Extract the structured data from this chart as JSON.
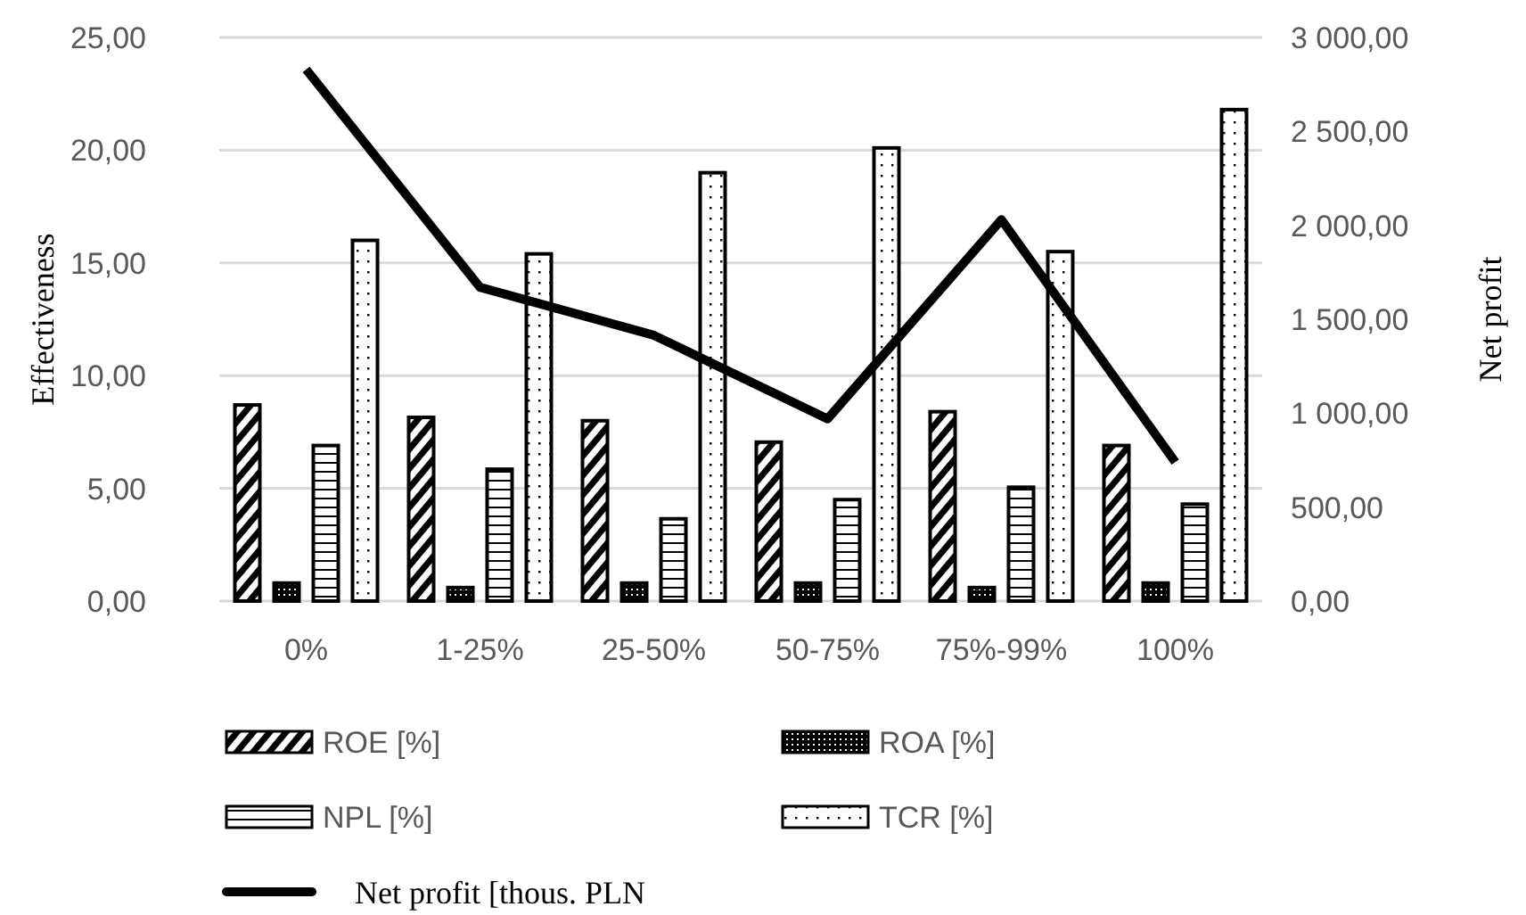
{
  "chart_data": {
    "type": "bar",
    "ylabel": "Effectiveness",
    "y2label": "Net profit",
    "categories": [
      "0%",
      "1-25%",
      "25-50%",
      "50-75%",
      "75%-99%",
      "100%"
    ],
    "series": [
      {
        "name": "ROE [%]",
        "color": "#000000",
        "values": [
          8.7,
          8.15,
          8.0,
          7.05,
          8.4,
          6.9
        ]
      },
      {
        "name": "ROA [%]",
        "color": "#000000",
        "values": [
          0.8,
          0.6,
          0.8,
          0.8,
          0.6,
          0.8
        ]
      },
      {
        "name": "NPL [%]",
        "color": "#000000",
        "values": [
          6.9,
          5.85,
          3.65,
          4.5,
          5.05,
          4.3
        ]
      },
      {
        "name": "TCR [%]",
        "color": "#000000",
        "values": [
          16.0,
          15.4,
          19.0,
          20.1,
          15.5,
          21.8
        ]
      },
      {
        "name": "Net profit [thous. PLN",
        "type": "line",
        "axis": "y2",
        "color": "#000000",
        "values": [
          2830,
          1670,
          1415,
          970,
          2030,
          740
        ]
      }
    ],
    "ylim": [
      0,
      25
    ],
    "yticks": [
      {
        "value": 0,
        "label": "0,00"
      },
      {
        "value": 5,
        "label": "5,00"
      },
      {
        "value": 10,
        "label": "10,00"
      },
      {
        "value": 15,
        "label": "15,00"
      },
      {
        "value": 20,
        "label": "20,00"
      },
      {
        "value": 25,
        "label": "25,00"
      }
    ],
    "y2lim": [
      0,
      3000
    ],
    "y2ticks": [
      {
        "value": 0,
        "label": "0,00"
      },
      {
        "value": 500,
        "label": "500,00"
      },
      {
        "value": 1000,
        "label": "1 000,00"
      },
      {
        "value": 1500,
        "label": "1 500,00"
      },
      {
        "value": 2000,
        "label": "2 000,00"
      },
      {
        "value": 2500,
        "label": "2 500,00"
      },
      {
        "value": 3000,
        "label": "3 000,00"
      }
    ],
    "grid": "y",
    "legend": "bottom",
    "marker": "none",
    "line_style": "solid"
  }
}
